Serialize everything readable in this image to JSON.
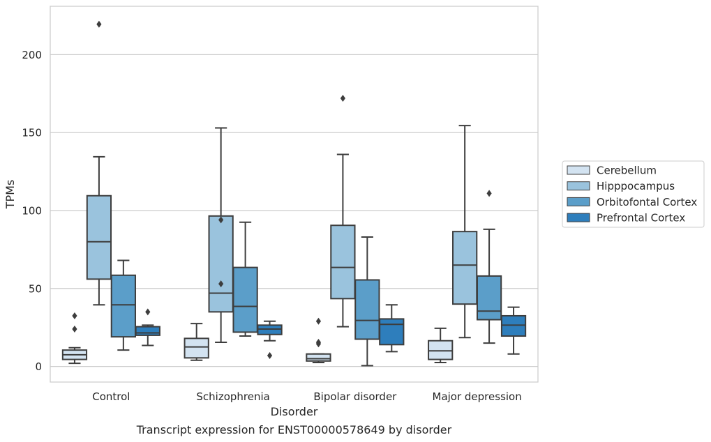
{
  "chart_data": {
    "type": "box",
    "xlabel": "Disorder",
    "ylabel": "TPMs",
    "caption": "Transcript expression for ENST00000578649 by disorder",
    "ylim": [
      -10,
      231
    ],
    "yticks": [
      0,
      50,
      100,
      150,
      200
    ],
    "grid": true,
    "legend_position": "right",
    "categories": [
      "Control",
      "Schizophrenia",
      "Bipolar disorder",
      "Major depression"
    ],
    "series": [
      {
        "name": "Cerebellum",
        "color": "#d3e3f1",
        "boxes": [
          {
            "whisker_low": 2,
            "q1": 4.5,
            "median": 7.5,
            "q3": 10.5,
            "whisker_high": 12,
            "outliers": [
              24,
              32.5
            ]
          },
          {
            "whisker_low": 4,
            "q1": 5.5,
            "median": 12.5,
            "q3": 18,
            "whisker_high": 27.5,
            "outliers": []
          },
          {
            "whisker_low": 2.5,
            "q1": 3.5,
            "median": 5,
            "q3": 8,
            "whisker_high": 8,
            "outliers": [
              14.5,
              15.5,
              29
            ]
          },
          {
            "whisker_low": 2.5,
            "q1": 4.5,
            "median": 10,
            "q3": 16.5,
            "whisker_high": 24.5,
            "outliers": []
          }
        ]
      },
      {
        "name": "Hipppocampus",
        "color": "#9ac3dd",
        "boxes": [
          {
            "whisker_low": 39.5,
            "q1": 56,
            "median": 80,
            "q3": 109.5,
            "whisker_high": 134.5,
            "outliers": [
              219.5
            ]
          },
          {
            "whisker_low": 15.5,
            "q1": 35,
            "median": 47,
            "q3": 96.5,
            "whisker_high": 153,
            "outliers": [
              53,
              94
            ]
          },
          {
            "whisker_low": 25.5,
            "q1": 43.5,
            "median": 63.5,
            "q3": 90.5,
            "whisker_high": 136,
            "outliers": [
              172
            ]
          },
          {
            "whisker_low": 18.5,
            "q1": 40,
            "median": 65,
            "q3": 86.5,
            "whisker_high": 154.5,
            "outliers": []
          }
        ]
      },
      {
        "name": "Orbitofontal Cortex",
        "color": "#5b9ec9",
        "boxes": [
          {
            "whisker_low": 10.5,
            "q1": 19,
            "median": 39.5,
            "q3": 58.5,
            "whisker_high": 68,
            "outliers": []
          },
          {
            "whisker_low": 19.5,
            "q1": 22,
            "median": 38.5,
            "q3": 63.5,
            "whisker_high": 92.5,
            "outliers": []
          },
          {
            "whisker_low": 0.5,
            "q1": 17.5,
            "median": 29.5,
            "q3": 55.5,
            "whisker_high": 83,
            "outliers": []
          },
          {
            "whisker_low": 15,
            "q1": 30,
            "median": 35.5,
            "q3": 58,
            "whisker_high": 88,
            "outliers": [
              111
            ]
          }
        ]
      },
      {
        "name": "Prefrontal Cortex",
        "color": "#2e7ebc",
        "boxes": [
          {
            "whisker_low": 13.5,
            "q1": 20,
            "median": 21.5,
            "q3": 25.5,
            "whisker_high": 26.5,
            "outliers": [
              35
            ]
          },
          {
            "whisker_low": 16.5,
            "q1": 20.5,
            "median": 24,
            "q3": 26.5,
            "whisker_high": 29,
            "outliers": [
              7
            ]
          },
          {
            "whisker_low": 9.5,
            "q1": 14,
            "median": 27,
            "q3": 30.5,
            "whisker_high": 39.5,
            "outliers": []
          },
          {
            "whisker_low": 8,
            "q1": 19.5,
            "median": 26.5,
            "q3": 32.5,
            "whisker_high": 38,
            "outliers": []
          }
        ]
      }
    ]
  }
}
